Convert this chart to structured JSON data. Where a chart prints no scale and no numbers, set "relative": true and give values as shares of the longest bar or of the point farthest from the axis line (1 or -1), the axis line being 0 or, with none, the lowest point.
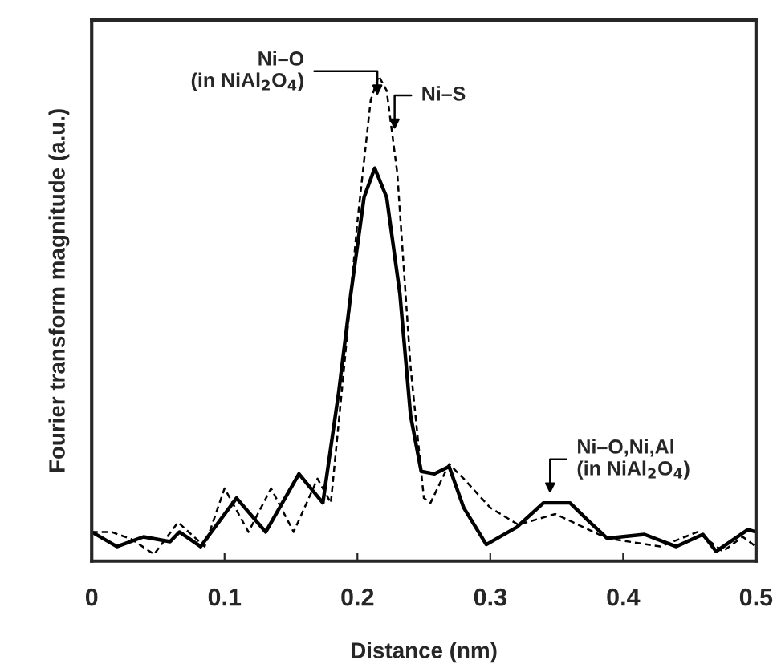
{
  "chart_data": {
    "type": "line",
    "relative": true,
    "xlabel": "Distance (nm)",
    "ylabel": "Fourier transform magnitude (a.u.)",
    "xlim": [
      0,
      0.5
    ],
    "xticks": [
      0,
      0.1,
      0.2,
      0.3,
      0.4,
      0.5
    ],
    "tick_labels": "x",
    "grid": false,
    "legend": false,
    "marker": "none",
    "series": [
      {
        "color": "#000000",
        "line_style": "solid",
        "x": [
          0,
          0.019,
          0.039,
          0.059,
          0.066,
          0.082,
          0.109,
          0.131,
          0.156,
          0.174,
          0.186,
          0.195,
          0.205,
          0.213,
          0.222,
          0.232,
          0.24,
          0.248,
          0.258,
          0.269,
          0.28,
          0.297,
          0.32,
          0.34,
          0.36,
          0.375,
          0.388,
          0.416,
          0.44,
          0.46,
          0.47,
          0.494,
          0.5
        ],
        "values": [
          0.06,
          0.03,
          0.05,
          0.04,
          0.06,
          0.03,
          0.13,
          0.06,
          0.18,
          0.12,
          0.35,
          0.55,
          0.75,
          0.81,
          0.75,
          0.55,
          0.3,
          0.185,
          0.18,
          0.195,
          0.11,
          0.034,
          0.07,
          0.12,
          0.12,
          0.08,
          0.047,
          0.055,
          0.03,
          0.055,
          0.02,
          0.065,
          0.06
        ]
      },
      {
        "color": "#000000",
        "line_style": "dashed",
        "x": [
          0,
          0.015,
          0.03,
          0.047,
          0.065,
          0.085,
          0.1,
          0.118,
          0.135,
          0.152,
          0.17,
          0.18,
          0.19,
          0.2,
          0.21,
          0.216,
          0.222,
          0.23,
          0.24,
          0.25,
          0.255,
          0.269,
          0.28,
          0.3,
          0.321,
          0.349,
          0.37,
          0.388,
          0.428,
          0.456,
          0.475,
          0.49,
          0.5
        ],
        "values": [
          0.06,
          0.06,
          0.045,
          0.014,
          0.08,
          0.03,
          0.15,
          0.06,
          0.15,
          0.06,
          0.17,
          0.12,
          0.4,
          0.7,
          0.95,
          1.0,
          0.97,
          0.8,
          0.4,
          0.13,
          0.12,
          0.2,
          0.17,
          0.11,
          0.075,
          0.097,
          0.07,
          0.047,
          0.03,
          0.06,
          0.02,
          0.05,
          0.03
        ]
      }
    ],
    "annotations": [
      {
        "text": "Ni–O\n(in NiAl$_{2}$O$_{4}$)",
        "x": 0.215,
        "y": 0.95
      },
      {
        "text": "Ni–S",
        "x": 0.228,
        "y": 0.88
      },
      {
        "text": "Ni–O,Ni,Al\n(in NiAl$_{2}$O$_{4}$)",
        "x": 0.345,
        "y": 0.13
      }
    ]
  }
}
